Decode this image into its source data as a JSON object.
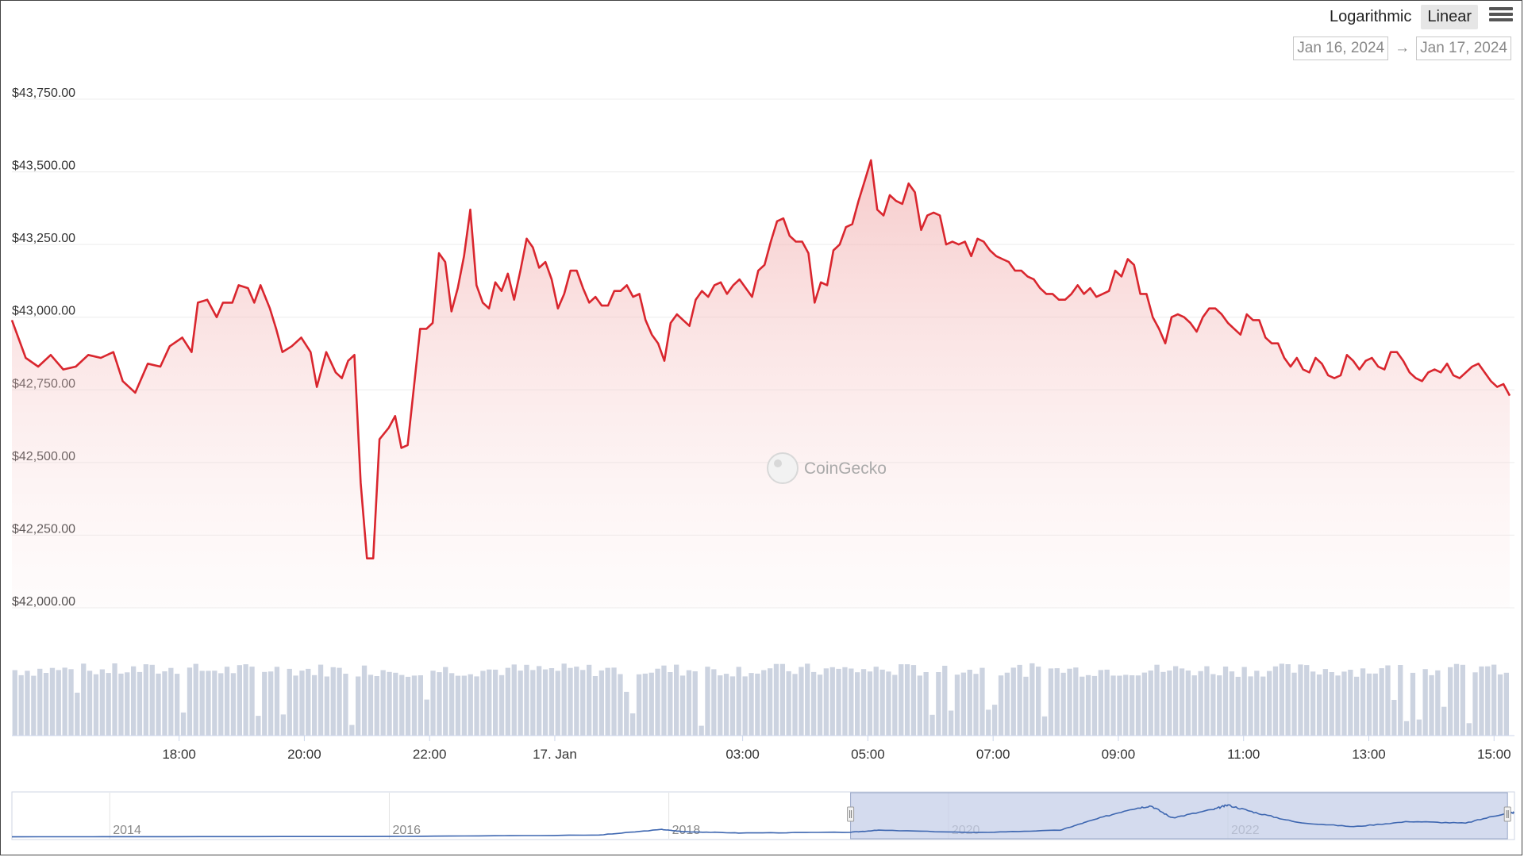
{
  "controls": {
    "logarithmic_label": "Logarithmic",
    "linear_label": "Linear",
    "selected_scale": "Linear",
    "menu_icon": "hamburger-menu-icon",
    "date_from": "Jan 16, 2024",
    "date_arrow": "→",
    "date_to": "Jan 17, 2024"
  },
  "watermark": {
    "text": "CoinGecko",
    "icon": "coingecko-gecko-icon"
  },
  "colors": {
    "price_line": "#d9262e",
    "volume_bar": "#ccd3e0",
    "navigator_line": "#3d66b0",
    "navigator_window": "#c5cfe8"
  },
  "chart_data": {
    "type": "line",
    "y_axis": {
      "min": 42000,
      "max": 43750,
      "ticks": [
        42000,
        42250,
        42500,
        42750,
        43000,
        43250,
        43500,
        43750
      ],
      "tick_labels": [
        "$42,000.00",
        "$42,250.00",
        "$42,500.00",
        "$42,750.00",
        "$43,000.00",
        "$43,250.00",
        "$43,500.00",
        "$43,750.00"
      ]
    },
    "x_axis": {
      "start_hour": 15.33,
      "end_hour": 39.25,
      "ticks": [
        {
          "hour": 18,
          "label": "18:00"
        },
        {
          "hour": 20,
          "label": "20:00"
        },
        {
          "hour": 22,
          "label": "22:00"
        },
        {
          "hour": 24,
          "label": "17. Jan"
        },
        {
          "hour": 27,
          "label": "03:00"
        },
        {
          "hour": 29,
          "label": "05:00"
        },
        {
          "hour": 31,
          "label": "07:00"
        },
        {
          "hour": 33,
          "label": "09:00"
        },
        {
          "hour": 35,
          "label": "11:00"
        },
        {
          "hour": 37,
          "label": "13:00"
        },
        {
          "hour": 39,
          "label": "15:00"
        }
      ]
    },
    "series": [
      {
        "points": [
          [
            15.33,
            42990
          ],
          [
            15.55,
            42860
          ],
          [
            15.75,
            42830
          ],
          [
            15.95,
            42870
          ],
          [
            16.15,
            42820
          ],
          [
            16.35,
            42830
          ],
          [
            16.55,
            42870
          ],
          [
            16.75,
            42860
          ],
          [
            16.95,
            42880
          ],
          [
            17.1,
            42780
          ],
          [
            17.3,
            42740
          ],
          [
            17.5,
            42840
          ],
          [
            17.7,
            42830
          ],
          [
            17.85,
            42900
          ],
          [
            18.05,
            42930
          ],
          [
            18.2,
            42880
          ],
          [
            18.3,
            43050
          ],
          [
            18.45,
            43060
          ],
          [
            18.6,
            43000
          ],
          [
            18.7,
            43050
          ],
          [
            18.85,
            43050
          ],
          [
            18.95,
            43110
          ],
          [
            19.1,
            43100
          ],
          [
            19.2,
            43050
          ],
          [
            19.3,
            43110
          ],
          [
            19.45,
            43030
          ],
          [
            19.55,
            42960
          ],
          [
            19.65,
            42880
          ],
          [
            19.8,
            42900
          ],
          [
            19.95,
            42930
          ],
          [
            20.1,
            42880
          ],
          [
            20.2,
            42760
          ],
          [
            20.35,
            42880
          ],
          [
            20.5,
            42810
          ],
          [
            20.6,
            42790
          ],
          [
            20.7,
            42850
          ],
          [
            20.8,
            42870
          ],
          [
            20.9,
            42430
          ],
          [
            21.0,
            42170
          ],
          [
            21.1,
            42170
          ],
          [
            21.2,
            42580
          ],
          [
            21.35,
            42620
          ],
          [
            21.45,
            42660
          ],
          [
            21.55,
            42550
          ],
          [
            21.65,
            42560
          ],
          [
            21.75,
            42760
          ],
          [
            21.85,
            42960
          ],
          [
            21.95,
            42960
          ],
          [
            22.05,
            42980
          ],
          [
            22.15,
            43220
          ],
          [
            22.25,
            43190
          ],
          [
            22.35,
            43020
          ],
          [
            22.45,
            43100
          ],
          [
            22.55,
            43210
          ],
          [
            22.65,
            43370
          ],
          [
            22.75,
            43110
          ],
          [
            22.85,
            43050
          ],
          [
            22.95,
            43030
          ],
          [
            23.05,
            43120
          ],
          [
            23.15,
            43090
          ],
          [
            23.25,
            43150
          ],
          [
            23.35,
            43060
          ],
          [
            23.45,
            43160
          ],
          [
            23.55,
            43270
          ],
          [
            23.65,
            43240
          ],
          [
            23.75,
            43170
          ],
          [
            23.85,
            43190
          ],
          [
            23.95,
            43130
          ],
          [
            24.05,
            43030
          ],
          [
            24.15,
            43080
          ],
          [
            24.25,
            43160
          ],
          [
            24.35,
            43160
          ],
          [
            24.45,
            43100
          ],
          [
            24.55,
            43050
          ],
          [
            24.65,
            43070
          ],
          [
            24.75,
            43040
          ],
          [
            24.85,
            43040
          ],
          [
            24.95,
            43090
          ],
          [
            25.05,
            43090
          ],
          [
            25.15,
            43110
          ],
          [
            25.25,
            43070
          ],
          [
            25.35,
            43080
          ],
          [
            25.45,
            42990
          ],
          [
            25.55,
            42940
          ],
          [
            25.65,
            42910
          ],
          [
            25.75,
            42850
          ],
          [
            25.85,
            42980
          ],
          [
            25.95,
            43010
          ],
          [
            26.05,
            42990
          ],
          [
            26.15,
            42970
          ],
          [
            26.25,
            43060
          ],
          [
            26.35,
            43090
          ],
          [
            26.45,
            43070
          ],
          [
            26.55,
            43110
          ],
          [
            26.65,
            43120
          ],
          [
            26.75,
            43080
          ],
          [
            26.85,
            43110
          ],
          [
            26.95,
            43130
          ],
          [
            27.05,
            43100
          ],
          [
            27.15,
            43070
          ],
          [
            27.25,
            43160
          ],
          [
            27.35,
            43180
          ],
          [
            27.45,
            43260
          ],
          [
            27.55,
            43330
          ],
          [
            27.65,
            43340
          ],
          [
            27.75,
            43280
          ],
          [
            27.85,
            43260
          ],
          [
            27.95,
            43260
          ],
          [
            28.05,
            43220
          ],
          [
            28.15,
            43050
          ],
          [
            28.25,
            43120
          ],
          [
            28.35,
            43110
          ],
          [
            28.45,
            43230
          ],
          [
            28.55,
            43250
          ],
          [
            28.65,
            43310
          ],
          [
            28.75,
            43320
          ],
          [
            28.85,
            43400
          ],
          [
            28.95,
            43470
          ],
          [
            29.05,
            43540
          ],
          [
            29.15,
            43370
          ],
          [
            29.25,
            43350
          ],
          [
            29.35,
            43420
          ],
          [
            29.45,
            43400
          ],
          [
            29.55,
            43390
          ],
          [
            29.65,
            43460
          ],
          [
            29.75,
            43430
          ],
          [
            29.85,
            43300
          ],
          [
            29.95,
            43350
          ],
          [
            30.05,
            43360
          ],
          [
            30.15,
            43350
          ],
          [
            30.25,
            43250
          ],
          [
            30.35,
            43260
          ],
          [
            30.45,
            43250
          ],
          [
            30.55,
            43260
          ],
          [
            30.65,
            43210
          ],
          [
            30.75,
            43270
          ],
          [
            30.85,
            43260
          ],
          [
            30.95,
            43230
          ],
          [
            31.05,
            43210
          ],
          [
            31.15,
            43200
          ],
          [
            31.25,
            43190
          ],
          [
            31.35,
            43160
          ],
          [
            31.45,
            43160
          ],
          [
            31.55,
            43140
          ],
          [
            31.65,
            43130
          ],
          [
            31.75,
            43100
          ],
          [
            31.85,
            43080
          ],
          [
            31.95,
            43080
          ],
          [
            32.05,
            43060
          ],
          [
            32.15,
            43060
          ],
          [
            32.25,
            43080
          ],
          [
            32.35,
            43110
          ],
          [
            32.45,
            43080
          ],
          [
            32.55,
            43100
          ],
          [
            32.65,
            43070
          ],
          [
            32.75,
            43080
          ],
          [
            32.85,
            43090
          ],
          [
            32.95,
            43160
          ],
          [
            33.05,
            43140
          ],
          [
            33.15,
            43200
          ],
          [
            33.25,
            43180
          ],
          [
            33.35,
            43080
          ],
          [
            33.45,
            43080
          ],
          [
            33.55,
            43000
          ],
          [
            33.65,
            42960
          ],
          [
            33.75,
            42910
          ],
          [
            33.85,
            43000
          ],
          [
            33.95,
            43010
          ],
          [
            34.05,
            43000
          ],
          [
            34.15,
            42980
          ],
          [
            34.25,
            42950
          ],
          [
            34.35,
            43000
          ],
          [
            34.45,
            43030
          ],
          [
            34.55,
            43030
          ],
          [
            34.65,
            43010
          ],
          [
            34.75,
            42980
          ],
          [
            34.85,
            42960
          ],
          [
            34.95,
            42940
          ],
          [
            35.05,
            43010
          ],
          [
            35.15,
            42990
          ],
          [
            35.25,
            42990
          ],
          [
            35.35,
            42930
          ],
          [
            35.45,
            42910
          ],
          [
            35.55,
            42910
          ],
          [
            35.65,
            42860
          ],
          [
            35.75,
            42830
          ],
          [
            35.85,
            42860
          ],
          [
            35.95,
            42820
          ],
          [
            36.05,
            42810
          ],
          [
            36.15,
            42860
          ],
          [
            36.25,
            42840
          ],
          [
            36.35,
            42800
          ],
          [
            36.45,
            42790
          ],
          [
            36.55,
            42800
          ],
          [
            36.65,
            42870
          ],
          [
            36.75,
            42850
          ],
          [
            36.85,
            42820
          ],
          [
            36.95,
            42850
          ],
          [
            37.05,
            42860
          ],
          [
            37.15,
            42830
          ],
          [
            37.25,
            42820
          ],
          [
            37.35,
            42880
          ],
          [
            37.45,
            42880
          ],
          [
            37.55,
            42850
          ],
          [
            37.65,
            42810
          ],
          [
            37.75,
            42790
          ],
          [
            37.85,
            42780
          ],
          [
            37.95,
            42810
          ],
          [
            38.05,
            42820
          ],
          [
            38.15,
            42810
          ],
          [
            38.25,
            42840
          ],
          [
            38.35,
            42800
          ],
          [
            38.45,
            42790
          ],
          [
            38.55,
            42810
          ],
          [
            38.65,
            42830
          ],
          [
            38.75,
            42840
          ],
          [
            38.85,
            42810
          ],
          [
            38.95,
            42780
          ],
          [
            39.05,
            42760
          ],
          [
            39.15,
            42770
          ],
          [
            39.25,
            42730
          ]
        ]
      }
    ],
    "volume": {
      "bar_count": 240,
      "min_relative": 0.1,
      "max_relative": 0.96
    },
    "navigator": {
      "year_labels": [
        "2014",
        "2016",
        "2018",
        "2020",
        "2022"
      ],
      "year_start": 2013.3,
      "year_end": 2024.05,
      "selected_range": [
        2019.3,
        2024.0
      ]
    }
  }
}
